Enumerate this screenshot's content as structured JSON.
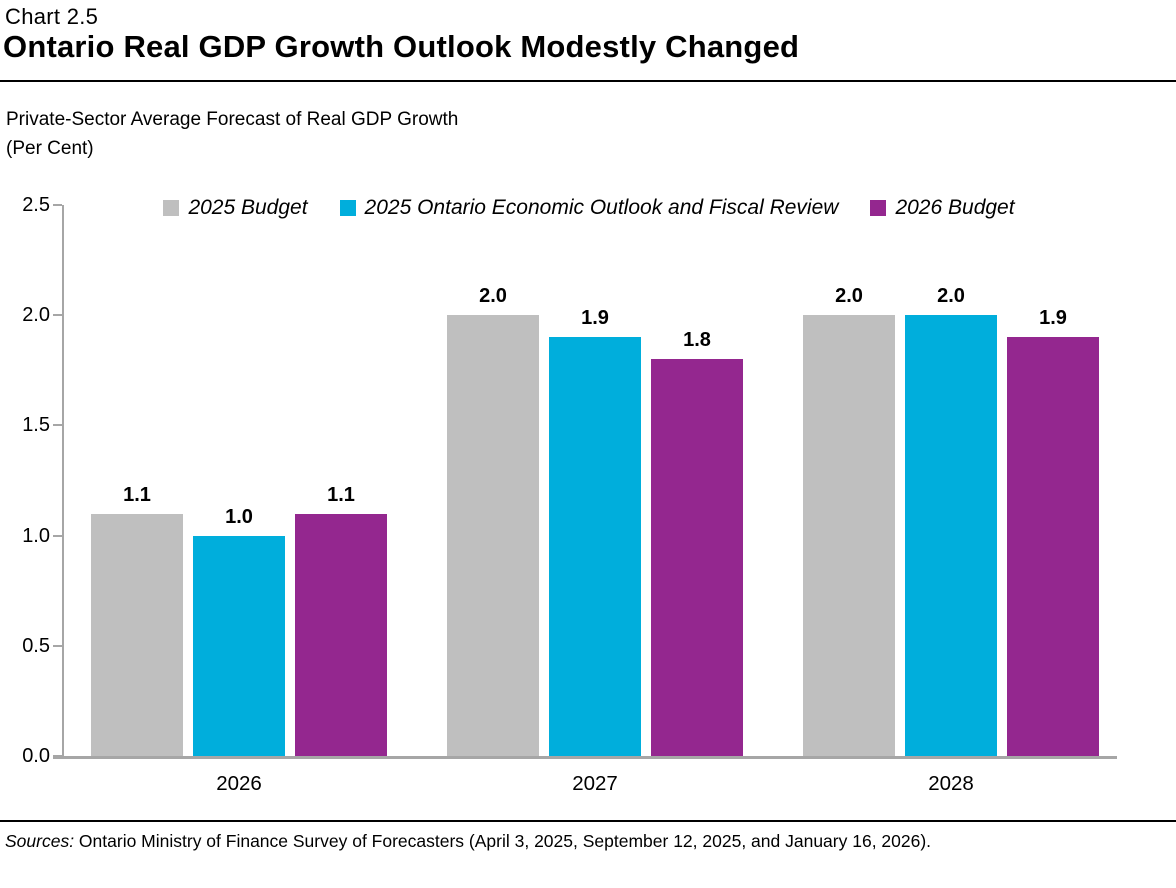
{
  "header": {
    "chart_number": "Chart 2.5",
    "title": "Ontario Real GDP Growth Outlook Modestly Changed"
  },
  "subtitle": {
    "line1": "Private-Sector Average Forecast of Real GDP Growth",
    "line2": "(Per Cent)"
  },
  "chart_data": {
    "type": "bar",
    "title": "Private-Sector Average Forecast of Real GDP Growth (Per Cent)",
    "categories": [
      "2026",
      "2027",
      "2028"
    ],
    "series": [
      {
        "name": "2025 Budget",
        "color": "#BFBFBF",
        "values": [
          1.1,
          2.0,
          2.0
        ]
      },
      {
        "name": "2025 Ontario Economic Outlook and Fiscal Review",
        "color": "#00AEDC",
        "values": [
          1.0,
          1.9,
          2.0
        ]
      },
      {
        "name": "2026 Budget",
        "color": "#94278F",
        "values": [
          1.1,
          1.8,
          1.9
        ]
      }
    ],
    "xlabel": "",
    "ylabel": "",
    "ylim": [
      0,
      2.5
    ],
    "yticks": [
      "0.0",
      "0.5",
      "1.0",
      "1.5",
      "2.0",
      "2.5"
    ],
    "grid": false,
    "legend_position": "top",
    "value_label_decimals": 1,
    "axis_color": "#A6A6A6"
  },
  "footer": {
    "sources_label": "Sources:",
    "sources_text": " Ontario Ministry of Finance Survey of Forecasters (April 3, 2025, September 12, 2025, and January 16, 2026)."
  }
}
